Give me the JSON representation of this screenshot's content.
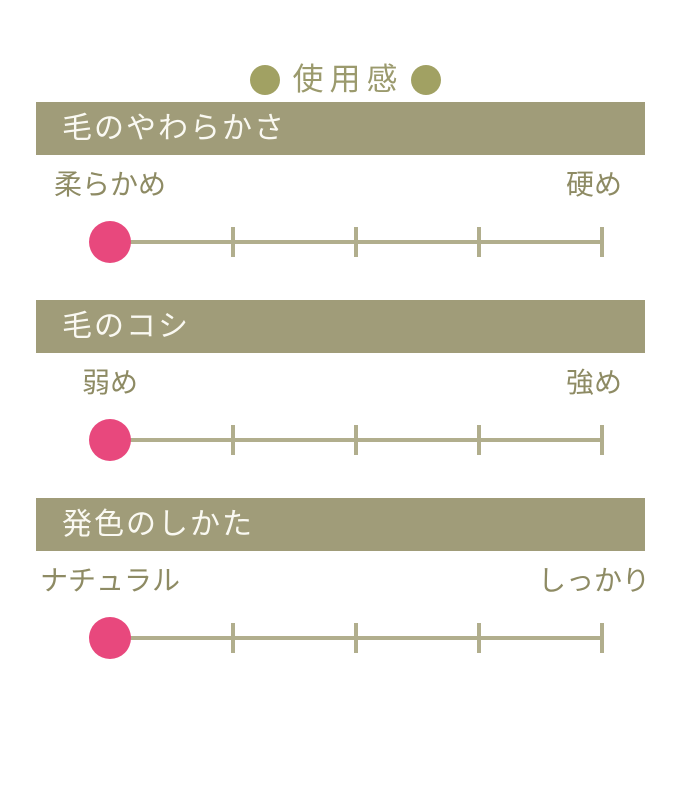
{
  "title": {
    "text": "使用感"
  },
  "colors": {
    "header_bar": "#a09c79",
    "title_dot": "#a1a163",
    "title_text": "#9b9a6d",
    "scale_label": "#8e8b64",
    "track": "#b1ae8d",
    "marker": "#e8487d",
    "header_text": "#faf9f2",
    "background": "#ffffff"
  },
  "sections": [
    {
      "heading": "毛のやわらかさ",
      "left_label": "柔らかめ",
      "right_label": "硬め",
      "value": 1,
      "max": 5
    },
    {
      "heading": "毛のコシ",
      "left_label": "弱め",
      "right_label": "強め",
      "value": 1,
      "max": 5
    },
    {
      "heading": "発色のしかた",
      "left_label": "ナチュラル",
      "right_label": "しっかり",
      "value": 1,
      "max": 5
    }
  ],
  "chart_data": {
    "type": "scatter",
    "title": "使用感",
    "description": "Three 5-point rating scales, marker shown at scale position 1 (leftmost) for each attribute",
    "scales": [
      {
        "name": "毛のやわらかさ",
        "min_label": "柔らかめ",
        "max_label": "硬め",
        "value": 1,
        "range": [
          1,
          5
        ]
      },
      {
        "name": "毛のコシ",
        "min_label": "弱め",
        "max_label": "強め",
        "value": 1,
        "range": [
          1,
          5
        ]
      },
      {
        "name": "発色のしかた",
        "min_label": "ナチュラル",
        "max_label": "しっかり",
        "value": 1,
        "range": [
          1,
          5
        ]
      }
    ],
    "legend_position": "none",
    "grid": false
  }
}
